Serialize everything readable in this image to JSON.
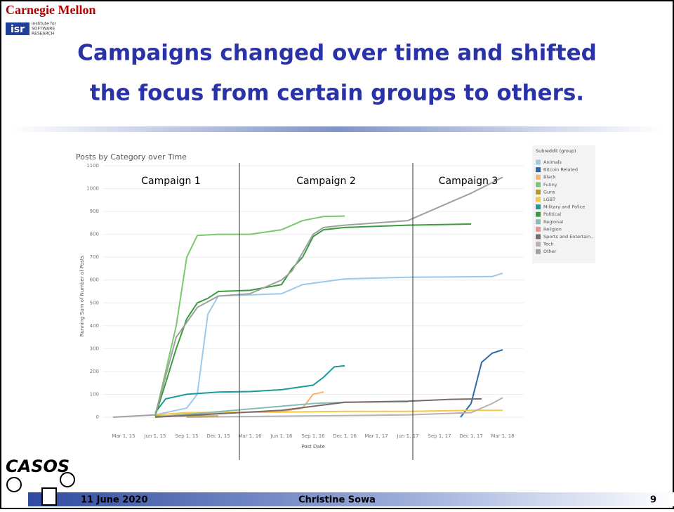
{
  "slide": {
    "university": "Carnegie Mellon",
    "institute": [
      "institute for",
      "SOFTWARE",
      "RESEARCH"
    ],
    "logo": "isr",
    "title_lines": [
      "Campaigns changed over time and shifted",
      "the focus from certain groups to others."
    ],
    "casos": "CASOS",
    "date": "11 June 2020",
    "author": "Christine Sowa",
    "page": "9"
  },
  "chart_data": {
    "type": "line",
    "title": "Posts by Category over Time",
    "y_label": "Running Sum of Number of Posts",
    "x_label": "Post Date",
    "legend_title": "Subreddit (group)",
    "ylim": [
      -40,
      1100
    ],
    "yticks": [
      0,
      100,
      200,
      300,
      400,
      500,
      600,
      700,
      800,
      900,
      1000,
      1100
    ],
    "xlim": [
      "2015-01-01",
      "2018-05-01"
    ],
    "xticks": [
      {
        "value": "2015-03-01",
        "label": "Mar 1, 15"
      },
      {
        "value": "2015-06-01",
        "label": "Jun 1, 15"
      },
      {
        "value": "2015-09-01",
        "label": "Sep 1, 15"
      },
      {
        "value": "2015-12-01",
        "label": "Dec 1, 15"
      },
      {
        "value": "2016-03-01",
        "label": "Mar 1, 16"
      },
      {
        "value": "2016-06-01",
        "label": "Jun 1, 16"
      },
      {
        "value": "2016-09-01",
        "label": "Sep 1, 16"
      },
      {
        "value": "2016-12-01",
        "label": "Dec 1, 16"
      },
      {
        "value": "2017-03-01",
        "label": "Mar 1, 17"
      },
      {
        "value": "2017-06-01",
        "label": "Jun 1, 17"
      },
      {
        "value": "2017-09-01",
        "label": "Sep 1, 17"
      },
      {
        "value": "2017-12-01",
        "label": "Dec 1, 17"
      },
      {
        "value": "2018-03-01",
        "label": "Mar 1, 18"
      }
    ],
    "grid": true,
    "campaigns": [
      "Campaign 1",
      "Campaign 2",
      "Campaign 3"
    ],
    "campaign_dividers": [
      "2016-02-01",
      "2017-06-15"
    ],
    "series": [
      {
        "name": "Animals",
        "color": "#9ecae9",
        "x": [
          "2015-06-01",
          "2015-09-01",
          "2015-10-01",
          "2015-11-01",
          "2015-12-01",
          "2016-06-01",
          "2016-08-01",
          "2016-12-01",
          "2017-06-01",
          "2018-02-01",
          "2018-03-01"
        ],
        "values": [
          10,
          40,
          100,
          450,
          530,
          540,
          580,
          605,
          612,
          615,
          630
        ]
      },
      {
        "name": "Bitcoin Related",
        "color": "#2e6aa6",
        "x": [
          "2017-11-01",
          "2017-12-01",
          "2018-01-01",
          "2018-02-01",
          "2018-03-01"
        ],
        "values": [
          0,
          60,
          240,
          280,
          295
        ]
      },
      {
        "name": "Black",
        "color": "#f7b26b",
        "x": [
          "2015-06-01",
          "2015-09-01",
          "2016-06-01",
          "2016-08-01",
          "2016-09-01",
          "2016-10-01"
        ],
        "values": [
          0,
          15,
          25,
          40,
          100,
          110
        ]
      },
      {
        "name": "Funny",
        "color": "#7ac96d",
        "x": [
          "2015-06-01",
          "2015-07-01",
          "2015-08-01",
          "2015-09-01",
          "2015-10-01",
          "2015-12-01",
          "2016-03-01",
          "2016-06-01",
          "2016-08-01",
          "2016-10-01",
          "2016-12-01"
        ],
        "values": [
          5,
          200,
          400,
          700,
          795,
          800,
          800,
          820,
          860,
          878,
          880
        ]
      },
      {
        "name": "Guns",
        "color": "#b29a2b",
        "x": [
          "2015-06-01",
          "2015-12-01"
        ],
        "values": [
          5,
          5
        ]
      },
      {
        "name": "LGBT",
        "color": "#f5c842",
        "x": [
          "2015-06-01",
          "2015-09-01",
          "2016-06-01",
          "2016-12-01",
          "2017-06-01",
          "2017-12-01",
          "2018-03-01"
        ],
        "values": [
          10,
          20,
          22,
          25,
          25,
          30,
          30
        ]
      },
      {
        "name": "Military and Police",
        "color": "#1b9a9a",
        "x": [
          "2015-06-01",
          "2015-07-01",
          "2015-09-01",
          "2015-12-01",
          "2016-03-01",
          "2016-06-01",
          "2016-09-01",
          "2016-10-01",
          "2016-11-01",
          "2016-12-01"
        ],
        "values": [
          20,
          80,
          100,
          110,
          112,
          120,
          140,
          175,
          220,
          225
        ]
      },
      {
        "name": "Political",
        "color": "#3a9c3e",
        "x": [
          "2015-06-01",
          "2015-07-01",
          "2015-08-01",
          "2015-09-01",
          "2015-10-01",
          "2015-11-01",
          "2015-12-01",
          "2016-03-01",
          "2016-06-01",
          "2016-07-01",
          "2016-08-01",
          "2016-09-01",
          "2016-10-01",
          "2016-12-01",
          "2017-06-01",
          "2017-12-01"
        ],
        "values": [
          5,
          150,
          300,
          430,
          500,
          520,
          550,
          555,
          580,
          650,
          700,
          790,
          820,
          830,
          840,
          845
        ]
      },
      {
        "name": "Regional",
        "color": "#86bcb6",
        "x": [
          "2015-06-01",
          "2016-09-01",
          "2016-12-01",
          "2017-06-01"
        ],
        "values": [
          0,
          60,
          65,
          68
        ]
      },
      {
        "name": "Religion",
        "color": "#f28e8e"
      },
      {
        "name": "Sports and Entertain..",
        "color": "#7a6a6a",
        "x": [
          "2015-06-01",
          "2016-06-01",
          "2016-12-01",
          "2017-06-01",
          "2017-10-01",
          "2018-01-01"
        ],
        "values": [
          0,
          30,
          65,
          70,
          78,
          80
        ]
      },
      {
        "name": "Tech",
        "color": "#bab0ac",
        "x": [
          "2015-09-01",
          "2017-06-01",
          "2017-12-01",
          "2018-02-01",
          "2018-03-01"
        ],
        "values": [
          0,
          10,
          20,
          60,
          85
        ]
      },
      {
        "name": "Other",
        "color": "#a0a0a0",
        "x": [
          "2015-02-01",
          "2015-06-01",
          "2015-08-01",
          "2015-10-01",
          "2015-12-01",
          "2016-03-01",
          "2016-06-01",
          "2016-07-01",
          "2016-08-01",
          "2016-09-01",
          "2016-10-01",
          "2016-12-01",
          "2017-06-01",
          "2017-08-01",
          "2017-10-01",
          "2017-12-01",
          "2018-03-01"
        ],
        "values": [
          0,
          10,
          350,
          480,
          530,
          540,
          600,
          640,
          720,
          800,
          830,
          840,
          860,
          900,
          940,
          980,
          1050
        ]
      }
    ]
  }
}
